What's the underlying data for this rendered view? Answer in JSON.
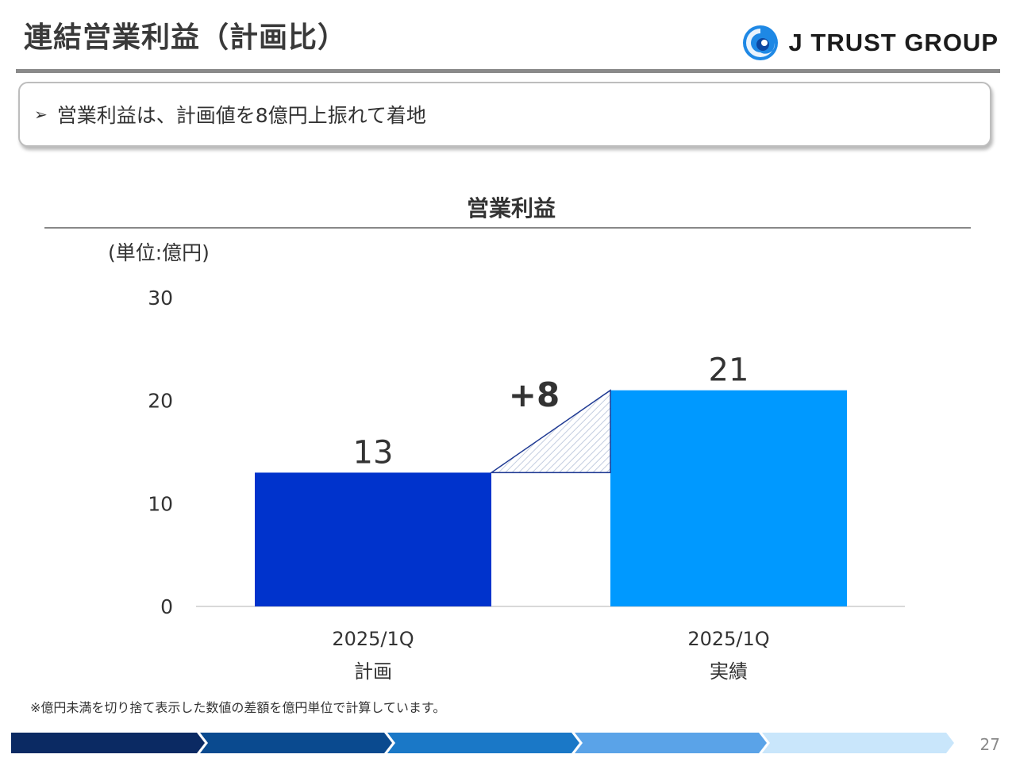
{
  "page": {
    "title": "連結営業利益（計画比）",
    "logo_text": "J TRUST GROUP",
    "summary_bullet": "営業利益は、計画値を8億円上振れて着地",
    "footnote": "※億円未満を切り捨て表示した数値の差額を億円単位で計算しています。",
    "page_number": "27"
  },
  "chart_data": {
    "type": "bar",
    "title": "営業利益",
    "unit_label": "(単位:億円)",
    "categories": [
      "2025/1Q\n計画",
      "2025/1Q\n実績"
    ],
    "category_lines": [
      [
        "2025/1Q",
        "計画"
      ],
      [
        "2025/1Q",
        "実績"
      ]
    ],
    "values": [
      13,
      21
    ],
    "bar_colors": [
      "#0033CC",
      "#0099FF"
    ],
    "ylim": [
      0,
      30
    ],
    "yticks": [
      "0",
      "10",
      "20",
      "30"
    ],
    "data_labels": [
      "13",
      "21"
    ],
    "difference_label": "+8",
    "grid": false
  },
  "colors": {
    "diff_outline": "#1F3A93",
    "diff_hatch": "#c3cde0",
    "axis": "#d9d9d9",
    "bar_arrows": [
      "#0b2a63",
      "#0a4a8f",
      "#1a78c7",
      "#5aa3e8",
      "#c9e6fb"
    ]
  }
}
